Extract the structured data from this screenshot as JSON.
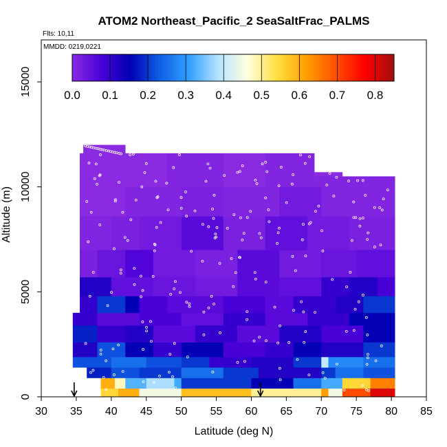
{
  "chart_data": {
    "type": "heatmap",
    "title": "ATOM2 Northeast_Pacific_2 SeaSaltFrac_PALMS",
    "annotations": {
      "flights": "Flts: 10,11",
      "dates": "MMDD: 0219,0221"
    },
    "xlabel": "Latitude (deg N)",
    "ylabel": "Altitude (m)",
    "xlim": [
      30,
      85
    ],
    "ylim": [
      0,
      17000
    ],
    "x_ticks": [
      30,
      35,
      40,
      45,
      50,
      55,
      60,
      65,
      70,
      75,
      80,
      85
    ],
    "x_tick_labels": [
      "30",
      "35",
      "40",
      "45",
      "50",
      "55",
      "60",
      "65",
      "70",
      "75",
      "80",
      "85"
    ],
    "y_ticks": [
      0,
      5000,
      10000,
      15000
    ],
    "y_tick_labels": [
      "0",
      "5000",
      "10000",
      "15000"
    ],
    "colorbar": {
      "range": [
        0.0,
        0.85
      ],
      "ticks": [
        0.0,
        0.1,
        0.2,
        0.3,
        0.4,
        0.5,
        0.6,
        0.7,
        0.8
      ],
      "tick_labels": [
        "0.0",
        "0.1",
        "0.2",
        "0.3",
        "0.4",
        "0.5",
        "0.6",
        "0.7",
        "0.8"
      ],
      "colors": [
        "#8a2be2",
        "#4b00d8",
        "#0000b4",
        "#1060e6",
        "#30a0ff",
        "#b8e4ff",
        "#ffffe0",
        "#ffe040",
        "#ffa000",
        "#ff5000",
        "#ff0000",
        "#a01010"
      ]
    },
    "markers": {
      "arrows_at_lat": [
        34.7,
        61.3
      ]
    },
    "bands": [
      {
        "alt": [
          0,
          400
        ],
        "segments": [
          [
            38.5,
            41,
            0.55
          ],
          [
            41,
            44,
            0.6
          ],
          [
            44,
            50,
            0.45
          ],
          [
            50,
            60,
            0.58
          ],
          [
            60,
            70,
            0.5
          ],
          [
            70,
            71,
            0.62
          ],
          [
            71,
            73,
            0.45
          ],
          [
            73,
            77,
            0.7
          ],
          [
            77,
            80.5,
            0.8
          ]
        ]
      },
      {
        "alt": [
          400,
          900
        ],
        "segments": [
          [
            38.5,
            40.5,
            0.6
          ],
          [
            40.5,
            42,
            0.48
          ],
          [
            42,
            45,
            0.33
          ],
          [
            45,
            49,
            0.38
          ],
          [
            49,
            50,
            0.32
          ],
          [
            50,
            60,
            0.2
          ],
          [
            60,
            66,
            0.15
          ],
          [
            66,
            70,
            0.25
          ],
          [
            70,
            73,
            0.32
          ],
          [
            73,
            77,
            0.55
          ],
          [
            77,
            80.5,
            0.65
          ]
        ]
      },
      {
        "alt": [
          900,
          1400
        ],
        "segments": [
          [
            36.5,
            40,
            0.18
          ],
          [
            40,
            44,
            0.22
          ],
          [
            44,
            50,
            0.2
          ],
          [
            50,
            56,
            0.25
          ],
          [
            56,
            61,
            0.2
          ],
          [
            61,
            70,
            0.12
          ],
          [
            70,
            72,
            0.2
          ],
          [
            72,
            76,
            0.25
          ],
          [
            76,
            80.5,
            0.22
          ]
        ]
      },
      {
        "alt": [
          1400,
          1900
        ],
        "segments": [
          [
            34.5,
            40,
            0.22
          ],
          [
            40,
            45,
            0.25
          ],
          [
            45,
            50,
            0.22
          ],
          [
            50,
            54,
            0.2
          ],
          [
            54,
            60,
            0.1
          ],
          [
            60,
            66,
            0.12
          ],
          [
            66,
            70,
            0.2
          ],
          [
            70,
            71,
            0.4
          ],
          [
            71,
            76,
            0.28
          ],
          [
            76,
            80.5,
            0.25
          ]
        ]
      },
      {
        "alt": [
          1900,
          2600
        ],
        "segments": [
          [
            34.5,
            38,
            0.12
          ],
          [
            38,
            42,
            0.22
          ],
          [
            42,
            46,
            0.15
          ],
          [
            46,
            50,
            0.1
          ],
          [
            50,
            56,
            0.15
          ],
          [
            56,
            62,
            0.08
          ],
          [
            62,
            66,
            0.1
          ],
          [
            66,
            70,
            0.15
          ],
          [
            70,
            76,
            0.12
          ],
          [
            76,
            80.5,
            0.2
          ]
        ]
      },
      {
        "alt": [
          2600,
          3400
        ],
        "segments": [
          [
            34.5,
            38,
            0.18
          ],
          [
            38,
            42,
            0.1
          ],
          [
            42,
            46,
            0.12
          ],
          [
            46,
            52,
            0.06
          ],
          [
            52,
            58,
            0.1
          ],
          [
            58,
            64,
            0.06
          ],
          [
            64,
            70,
            0.12
          ],
          [
            70,
            76,
            0.08
          ],
          [
            76,
            80.5,
            0.15
          ]
        ]
      },
      {
        "alt": [
          3400,
          4000
        ],
        "segments": [
          [
            34.5,
            38,
            0.1
          ],
          [
            38,
            44,
            0.06
          ],
          [
            44,
            50,
            0.08
          ],
          [
            50,
            56,
            0.05
          ],
          [
            56,
            62,
            0.1
          ],
          [
            62,
            68,
            0.06
          ],
          [
            68,
            74,
            0.1
          ],
          [
            74,
            80.5,
            0.15
          ]
        ]
      },
      {
        "alt": [
          4000,
          4800
        ],
        "segments": [
          [
            35.5,
            38,
            0.1
          ],
          [
            38,
            42,
            0.2
          ],
          [
            42,
            44,
            0.15
          ],
          [
            44,
            48,
            0.08
          ],
          [
            48,
            56,
            0.06
          ],
          [
            56,
            62,
            0.08
          ],
          [
            62,
            66,
            0.06
          ],
          [
            66,
            72,
            0.1
          ],
          [
            72,
            76,
            0.12
          ],
          [
            76,
            80.5,
            0.2
          ]
        ]
      },
      {
        "alt": [
          4800,
          5700
        ],
        "segments": [
          [
            35.5,
            40,
            0.12
          ],
          [
            40,
            46,
            0.05
          ],
          [
            46,
            52,
            0.04
          ],
          [
            52,
            58,
            0.03
          ],
          [
            58,
            64,
            0.06
          ],
          [
            64,
            70,
            0.05
          ],
          [
            70,
            74,
            0.1
          ],
          [
            74,
            78,
            0.12
          ],
          [
            78,
            80.5,
            0.08
          ]
        ]
      },
      {
        "alt": [
          5700,
          7000
        ],
        "segments": [
          [
            35.5,
            38,
            0.02
          ],
          [
            38,
            42,
            0.04
          ],
          [
            42,
            46,
            0.07
          ],
          [
            46,
            52,
            0.03
          ],
          [
            52,
            58,
            0.02
          ],
          [
            58,
            64,
            0.06
          ],
          [
            64,
            70,
            0.03
          ],
          [
            70,
            75,
            0.04
          ],
          [
            75,
            80.5,
            0.05
          ]
        ]
      },
      {
        "alt": [
          7000,
          8600
        ],
        "segments": [
          [
            35.5,
            40,
            0.01
          ],
          [
            40,
            44,
            0.02
          ],
          [
            44,
            50,
            0.03
          ],
          [
            50,
            56,
            0.06
          ],
          [
            56,
            62,
            0.02
          ],
          [
            62,
            68,
            0.05
          ],
          [
            68,
            74,
            0.03
          ],
          [
            74,
            80.5,
            0.02
          ]
        ]
      },
      {
        "alt": [
          8600,
          10000
        ],
        "segments": [
          [
            35.5,
            42,
            0.0
          ],
          [
            42,
            50,
            0.01
          ],
          [
            50,
            56,
            0.02
          ],
          [
            56,
            64,
            0.01
          ],
          [
            64,
            70,
            0.03
          ],
          [
            70,
            80.5,
            0.01
          ]
        ]
      },
      {
        "alt": [
          10000,
          11600
        ],
        "segments": [
          [
            35.5,
            48,
            0.0
          ],
          [
            48,
            56,
            0.01
          ],
          [
            56,
            62,
            0.0
          ],
          [
            62,
            69,
            0.01
          ]
        ]
      },
      {
        "alt": [
          10000,
          10500
        ],
        "segments": [
          [
            69,
            80.5,
            0.01
          ]
        ]
      },
      {
        "alt": [
          10500,
          10700
        ],
        "segments": [
          [
            69,
            73,
            0.0
          ]
        ]
      },
      {
        "alt": [
          11600,
          12000
        ],
        "segments": [
          [
            36,
            42,
            0.0
          ]
        ]
      }
    ]
  }
}
